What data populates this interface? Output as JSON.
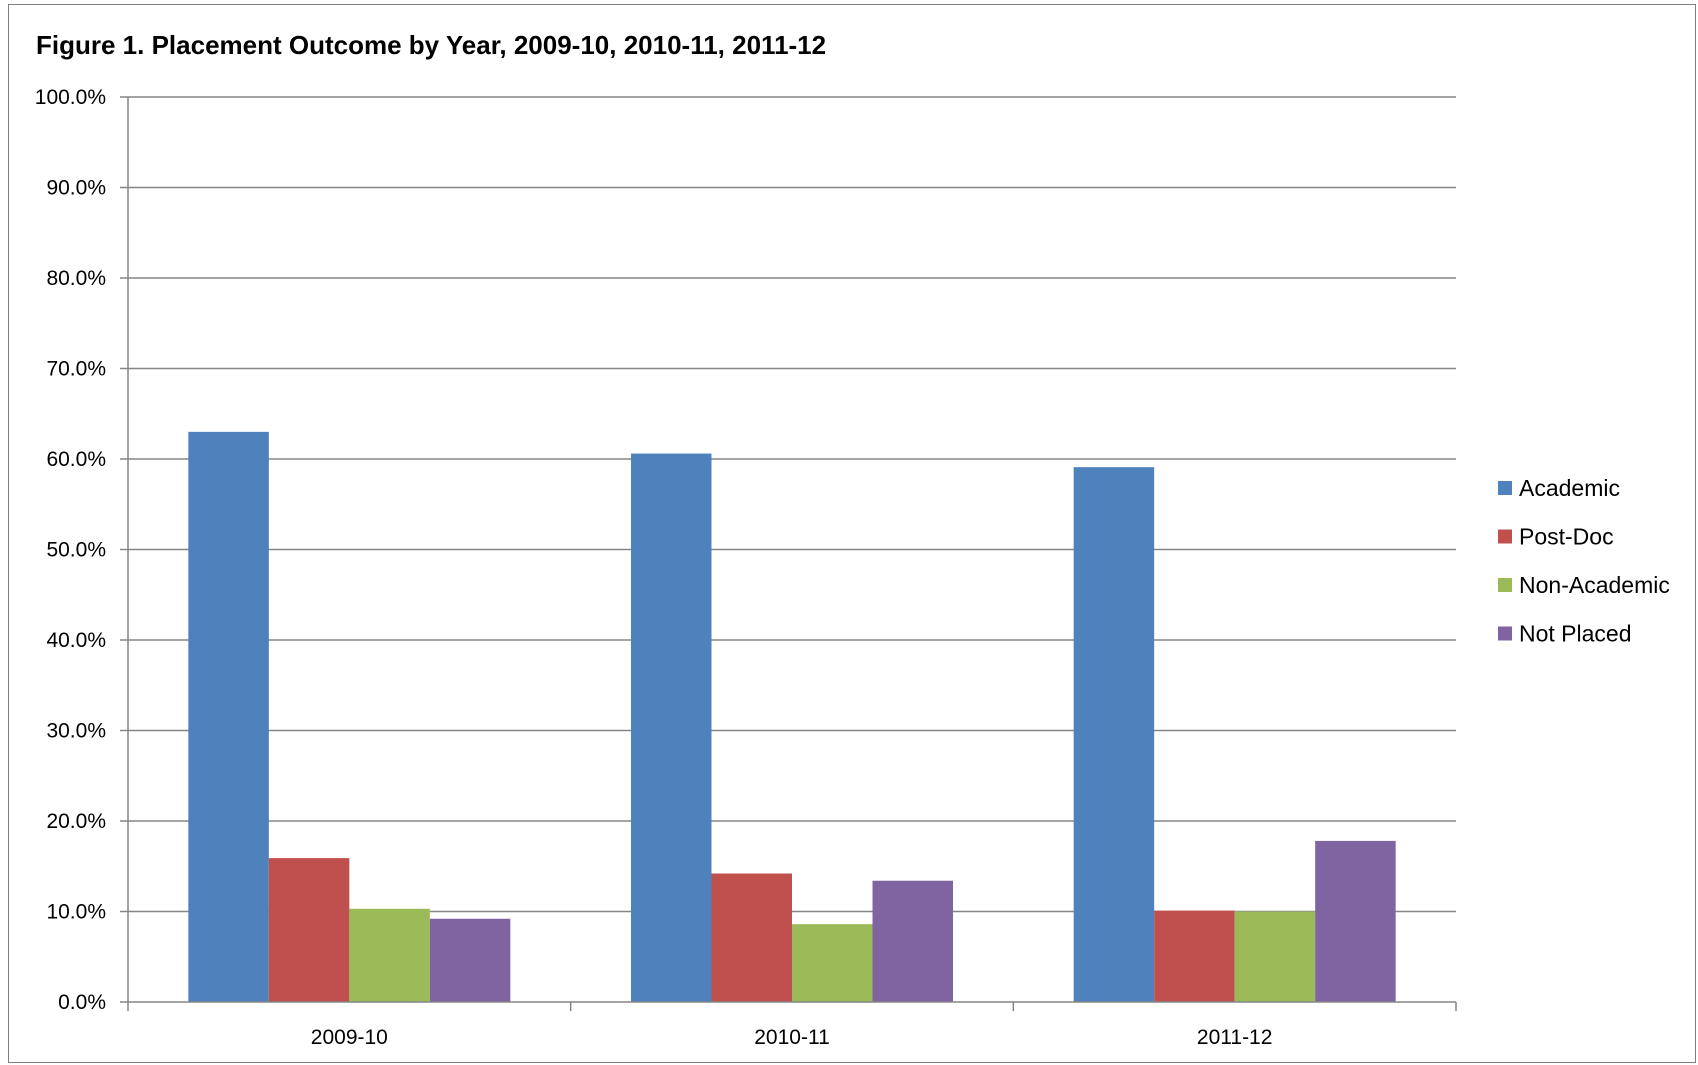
{
  "chart_data": {
    "type": "bar",
    "title": "Figure 1. Placement Outcome by Year, 2009-10, 2010-11, 2011-12",
    "categories": [
      "2009-10",
      "2010-11",
      "2011-12"
    ],
    "series": [
      {
        "name": "Academic",
        "color": "#4f81bd",
        "values": [
          63.0,
          60.6,
          59.1
        ]
      },
      {
        "name": "Post-Doc",
        "color": "#c0504d",
        "values": [
          15.9,
          14.2,
          10.1
        ]
      },
      {
        "name": "Non-Academic",
        "color": "#9bbb59",
        "values": [
          10.3,
          8.6,
          10.0
        ]
      },
      {
        "name": "Not Placed",
        "color": "#8064a2",
        "values": [
          9.2,
          13.4,
          17.8
        ]
      }
    ],
    "ylim": [
      0,
      100
    ],
    "ytick_labels": [
      "0.0%",
      "10.0%",
      "20.0%",
      "30.0%",
      "40.0%",
      "50.0%",
      "60.0%",
      "70.0%",
      "80.0%",
      "90.0%",
      "100.0%"
    ],
    "grid": true,
    "legend_position": "right"
  }
}
